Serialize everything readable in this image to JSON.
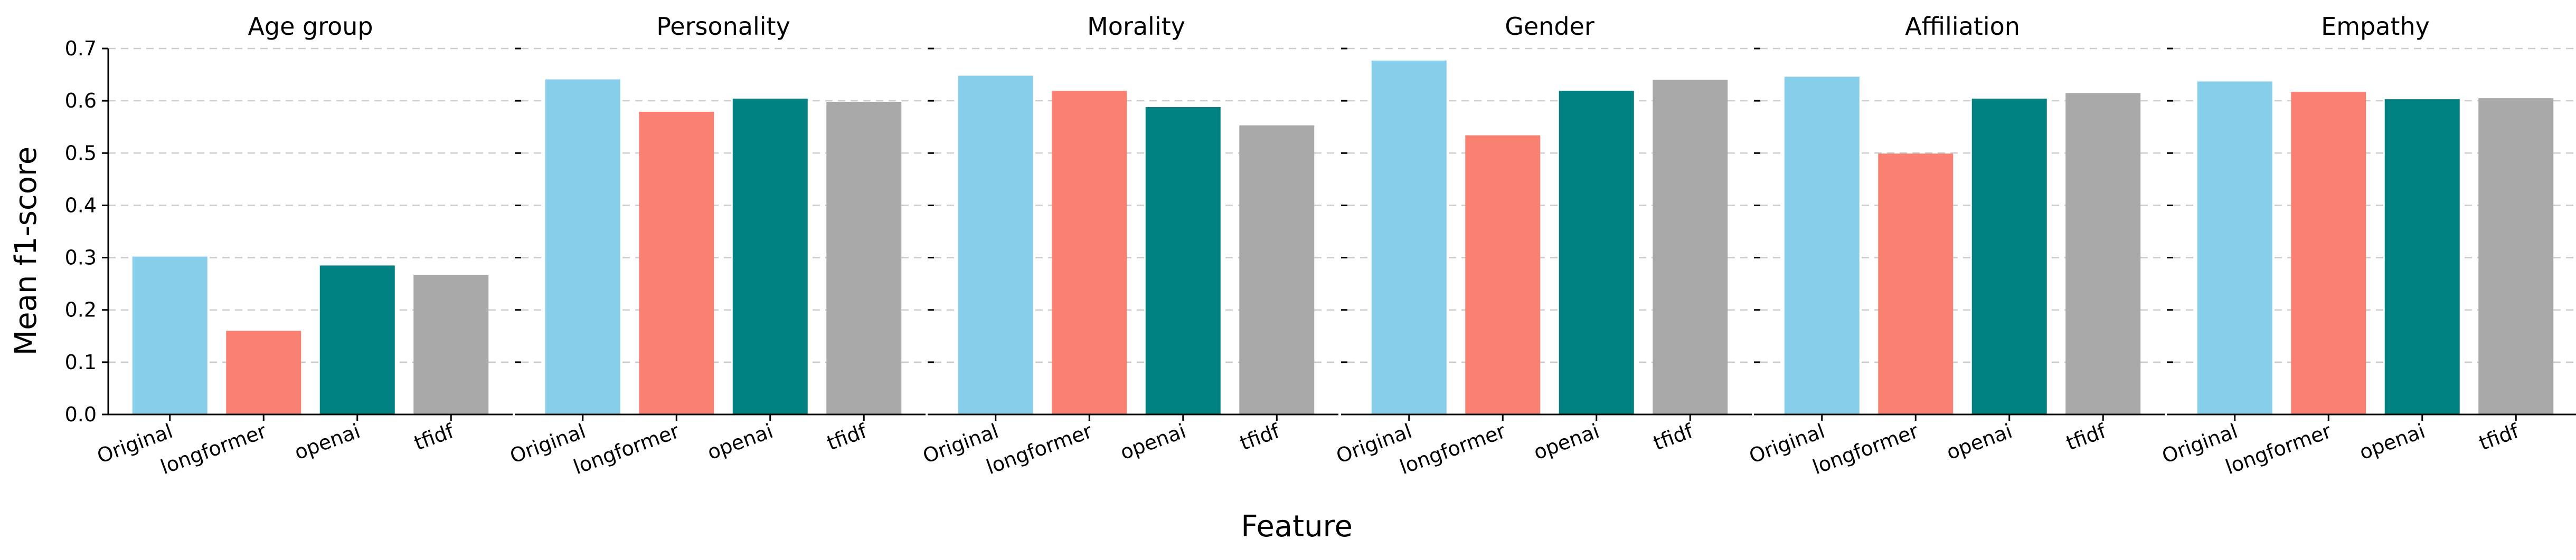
{
  "chart_data": {
    "type": "bar",
    "xlabel": "Feature",
    "ylabel": "Mean f1-score",
    "ylim": [
      0,
      0.7
    ],
    "yticks": [
      "0.0",
      "0.1",
      "0.2",
      "0.3",
      "0.4",
      "0.5",
      "0.6",
      "0.7"
    ],
    "grid": "horizontal dashed",
    "categories": [
      "Original",
      "longformer",
      "openai",
      "tfidf"
    ],
    "colors": {
      "Original": "#87ceeb",
      "longformer": "#fa8072",
      "openai": "#008080",
      "tfidf": "#a9a9a9"
    },
    "panels": [
      {
        "title": "Age group",
        "values": [
          0.302,
          0.16,
          0.285,
          0.267
        ]
      },
      {
        "title": "Personality",
        "values": [
          0.641,
          0.579,
          0.604,
          0.598
        ]
      },
      {
        "title": "Morality",
        "values": [
          0.648,
          0.619,
          0.588,
          0.553
        ]
      },
      {
        "title": "Gender",
        "values": [
          0.677,
          0.534,
          0.619,
          0.64
        ]
      },
      {
        "title": "Affiliation",
        "values": [
          0.646,
          0.499,
          0.604,
          0.615
        ]
      },
      {
        "title": "Empathy",
        "values": [
          0.637,
          0.617,
          0.603,
          0.605
        ]
      }
    ]
  }
}
